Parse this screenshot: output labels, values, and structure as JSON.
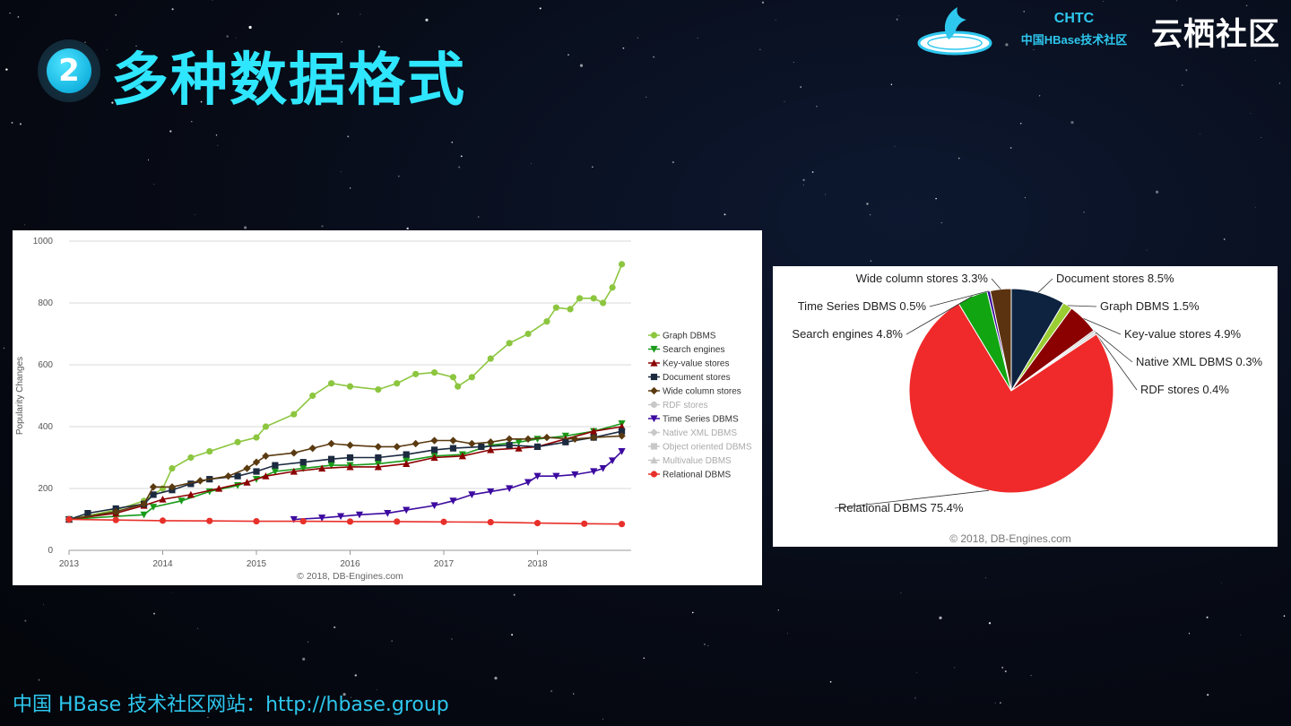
{
  "slide": {
    "number": "2",
    "title": "多种数据格式",
    "org_top": "CHTC",
    "org_sub": "中国HBase技术社区",
    "brand": "云栖社区",
    "footer": "中国 HBase 技术社区网站：http://hbase.group"
  },
  "chart_data": [
    {
      "type": "line",
      "title": "",
      "ylabel": "Popularity Changes",
      "xlabel": "",
      "ylim": [
        0,
        1000
      ],
      "xlim": [
        2013.0,
        2019.0
      ],
      "yticks": [
        0,
        200,
        400,
        600,
        800,
        1000
      ],
      "xticks": [
        "2013",
        "2014",
        "2015",
        "2016",
        "2017",
        "2018"
      ],
      "copyright": "© 2018, DB-Engines.com",
      "legend_position": "right",
      "grid": true,
      "series": [
        {
          "name": "Graph DBMS",
          "color": "#8cc63f",
          "marker": "circle",
          "points": [
            [
              2013.0,
              100
            ],
            [
              2013.5,
              130
            ],
            [
              2013.8,
              160
            ],
            [
              2014.0,
              200
            ],
            [
              2014.1,
              265
            ],
            [
              2014.3,
              300
            ],
            [
              2014.5,
              320
            ],
            [
              2014.8,
              350
            ],
            [
              2015.0,
              365
            ],
            [
              2015.1,
              400
            ],
            [
              2015.4,
              440
            ],
            [
              2015.6,
              500
            ],
            [
              2015.8,
              540
            ],
            [
              2016.0,
              530
            ],
            [
              2016.3,
              520
            ],
            [
              2016.5,
              540
            ],
            [
              2016.7,
              570
            ],
            [
              2016.9,
              575
            ],
            [
              2017.1,
              560
            ],
            [
              2017.15,
              530
            ],
            [
              2017.3,
              560
            ],
            [
              2017.5,
              620
            ],
            [
              2017.7,
              670
            ],
            [
              2017.9,
              700
            ],
            [
              2018.1,
              740
            ],
            [
              2018.2,
              785
            ],
            [
              2018.35,
              780
            ],
            [
              2018.45,
              815
            ],
            [
              2018.6,
              815
            ],
            [
              2018.7,
              800
            ],
            [
              2018.8,
              850
            ],
            [
              2018.9,
              925
            ]
          ]
        },
        {
          "name": "Search engines",
          "color": "#1a9a1a",
          "marker": "triangle-down",
          "points": [
            [
              2013.0,
              100
            ],
            [
              2013.5,
              110
            ],
            [
              2013.8,
              115
            ],
            [
              2013.9,
              140
            ],
            [
              2014.2,
              160
            ],
            [
              2014.5,
              190
            ],
            [
              2014.8,
              210
            ],
            [
              2015.0,
              230
            ],
            [
              2015.2,
              255
            ],
            [
              2015.5,
              265
            ],
            [
              2015.8,
              275
            ],
            [
              2016.0,
              275
            ],
            [
              2016.3,
              280
            ],
            [
              2016.6,
              290
            ],
            [
              2016.9,
              305
            ],
            [
              2017.2,
              310
            ],
            [
              2017.5,
              340
            ],
            [
              2017.8,
              350
            ],
            [
              2018.0,
              360
            ],
            [
              2018.3,
              370
            ],
            [
              2018.6,
              385
            ],
            [
              2018.9,
              410
            ]
          ]
        },
        {
          "name": "Key-value stores",
          "color": "#8b0000",
          "marker": "triangle-up",
          "points": [
            [
              2013.0,
              100
            ],
            [
              2013.5,
              120
            ],
            [
              2013.8,
              145
            ],
            [
              2014.0,
              165
            ],
            [
              2014.3,
              180
            ],
            [
              2014.6,
              200
            ],
            [
              2014.9,
              220
            ],
            [
              2015.1,
              240
            ],
            [
              2015.4,
              255
            ],
            [
              2015.7,
              265
            ],
            [
              2016.0,
              270
            ],
            [
              2016.3,
              270
            ],
            [
              2016.6,
              280
            ],
            [
              2016.9,
              300
            ],
            [
              2017.2,
              305
            ],
            [
              2017.5,
              325
            ],
            [
              2017.8,
              330
            ],
            [
              2018.0,
              335
            ],
            [
              2018.3,
              360
            ],
            [
              2018.6,
              385
            ],
            [
              2018.9,
              400
            ]
          ]
        },
        {
          "name": "Document stores",
          "color": "#1c2a40",
          "marker": "square",
          "points": [
            [
              2013.0,
              100
            ],
            [
              2013.2,
              120
            ],
            [
              2013.5,
              135
            ],
            [
              2013.8,
              150
            ],
            [
              2013.9,
              180
            ],
            [
              2014.1,
              195
            ],
            [
              2014.3,
              215
            ],
            [
              2014.5,
              230
            ],
            [
              2014.8,
              240
            ],
            [
              2015.0,
              255
            ],
            [
              2015.2,
              275
            ],
            [
              2015.5,
              285
            ],
            [
              2015.8,
              295
            ],
            [
              2016.0,
              300
            ],
            [
              2016.3,
              300
            ],
            [
              2016.6,
              310
            ],
            [
              2016.9,
              325
            ],
            [
              2017.1,
              330
            ],
            [
              2017.4,
              335
            ],
            [
              2017.7,
              340
            ],
            [
              2018.0,
              335
            ],
            [
              2018.3,
              350
            ],
            [
              2018.6,
              365
            ],
            [
              2018.9,
              385
            ]
          ]
        },
        {
          "name": "Wide column stores",
          "color": "#5a3a10",
          "marker": "diamond",
          "points": [
            [
              2013.0,
              100
            ],
            [
              2013.5,
              125
            ],
            [
              2013.8,
              150
            ],
            [
              2013.9,
              205
            ],
            [
              2014.1,
              205
            ],
            [
              2014.4,
              225
            ],
            [
              2014.7,
              240
            ],
            [
              2014.9,
              265
            ],
            [
              2015.0,
              285
            ],
            [
              2015.1,
              305
            ],
            [
              2015.4,
              315
            ],
            [
              2015.6,
              330
            ],
            [
              2015.8,
              345
            ],
            [
              2016.0,
              340
            ],
            [
              2016.3,
              335
            ],
            [
              2016.5,
              335
            ],
            [
              2016.7,
              345
            ],
            [
              2016.9,
              355
            ],
            [
              2017.1,
              355
            ],
            [
              2017.3,
              345
            ],
            [
              2017.5,
              350
            ],
            [
              2017.7,
              360
            ],
            [
              2017.9,
              360
            ],
            [
              2018.1,
              365
            ],
            [
              2018.4,
              360
            ],
            [
              2018.6,
              365
            ],
            [
              2018.9,
              370
            ]
          ]
        },
        {
          "name": "RDF stores",
          "color": "#c8c8c8",
          "marker": "circle",
          "points": []
        },
        {
          "name": "Time Series DBMS",
          "color": "#3c0aa0",
          "marker": "triangle-down",
          "points": [
            [
              2015.4,
              100
            ],
            [
              2015.7,
              105
            ],
            [
              2015.9,
              110
            ],
            [
              2016.1,
              115
            ],
            [
              2016.4,
              120
            ],
            [
              2016.6,
              130
            ],
            [
              2016.9,
              145
            ],
            [
              2017.1,
              160
            ],
            [
              2017.3,
              180
            ],
            [
              2017.5,
              190
            ],
            [
              2017.7,
              200
            ],
            [
              2017.9,
              220
            ],
            [
              2018.0,
              240
            ],
            [
              2018.2,
              240
            ],
            [
              2018.4,
              245
            ],
            [
              2018.6,
              255
            ],
            [
              2018.7,
              265
            ],
            [
              2018.8,
              290
            ],
            [
              2018.9,
              320
            ]
          ]
        },
        {
          "name": "Native XML DBMS",
          "color": "#c8c8c8",
          "marker": "diamond",
          "points": []
        },
        {
          "name": "Object oriented DBMS",
          "color": "#c8c8c8",
          "marker": "square",
          "points": []
        },
        {
          "name": "Multivalue DBMS",
          "color": "#c8c8c8",
          "marker": "triangle-up",
          "points": []
        },
        {
          "name": "Relational DBMS",
          "color": "#e8302a",
          "marker": "circle",
          "points": [
            [
              2013.0,
              100
            ],
            [
              2013.5,
              98
            ],
            [
              2014.0,
              96
            ],
            [
              2014.5,
              95
            ],
            [
              2015.0,
              94
            ],
            [
              2015.5,
              94
            ],
            [
              2016.0,
              93
            ],
            [
              2016.5,
              93
            ],
            [
              2017.0,
              92
            ],
            [
              2017.5,
              91
            ],
            [
              2018.0,
              88
            ],
            [
              2018.5,
              86
            ],
            [
              2018.9,
              85
            ]
          ]
        }
      ]
    },
    {
      "type": "pie",
      "title": "",
      "copyright": "© 2018, DB-Engines.com",
      "slices": [
        {
          "label": "Document stores",
          "value": 8.5,
          "display": "Document stores 8.5%",
          "color": "#0d2340"
        },
        {
          "label": "Graph DBMS",
          "value": 1.5,
          "display": "Graph DBMS 1.5%",
          "color": "#9acd32"
        },
        {
          "label": "Key-value stores",
          "value": 4.9,
          "display": "Key-value stores 4.9%",
          "color": "#8b0000"
        },
        {
          "label": "Native XML DBMS",
          "value": 0.3,
          "display": "Native XML DBMS 0.3%",
          "color": "#bbbbbb"
        },
        {
          "label": "RDF stores",
          "value": 0.4,
          "display": "RDF stores 0.4%",
          "color": "#d8d8d8"
        },
        {
          "label": "Relational DBMS",
          "value": 75.4,
          "display": "Relational DBMS 75.4%",
          "color": "#f02a2a"
        },
        {
          "label": "Search engines",
          "value": 4.8,
          "display": "Search engines 4.8%",
          "color": "#11a511"
        },
        {
          "label": "Time Series DBMS",
          "value": 0.5,
          "display": "Time Series DBMS 0.5%",
          "color": "#3a0a9a"
        },
        {
          "label": "Wide column stores",
          "value": 3.3,
          "display": "Wide column stores 3.3%",
          "color": "#5c3310"
        }
      ]
    }
  ]
}
